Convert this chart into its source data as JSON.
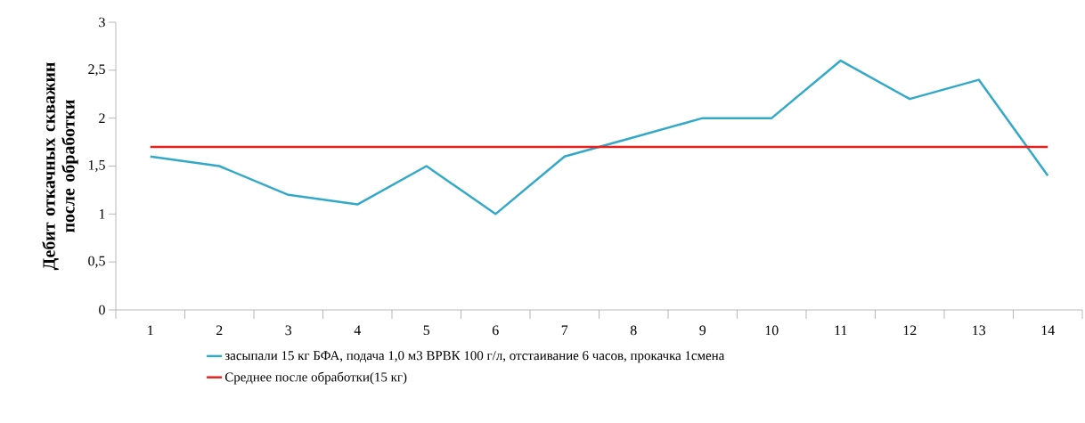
{
  "chart_data": {
    "type": "line",
    "ylabel": "Дебит откачных скважин после обработки",
    "categories": [
      "1",
      "2",
      "3",
      "4",
      "5",
      "6",
      "7",
      "8",
      "9",
      "10",
      "11",
      "12",
      "13",
      "14"
    ],
    "series": [
      {
        "name": "засыпали 15 кг БФА, подача 1,0 м3 ВРВК 100 г/л, отстаивание 6 часов, прокачка 1смена",
        "color": "#33a9c9",
        "values": [
          1.6,
          1.5,
          1.2,
          1.1,
          1.5,
          1.0,
          1.6,
          1.8,
          2.0,
          2.0,
          2.6,
          2.2,
          2.4,
          1.4
        ]
      },
      {
        "name": "Среднее после обработки(15 кг)",
        "color": "#e8201c",
        "values": [
          1.7,
          1.7,
          1.7,
          1.7,
          1.7,
          1.7,
          1.7,
          1.7,
          1.7,
          1.7,
          1.7,
          1.7,
          1.7,
          1.7
        ]
      }
    ],
    "ylim": [
      0,
      3
    ],
    "yticks": [
      0,
      {
        "value": 0.5,
        "label": "0,5"
      },
      1,
      {
        "value": 1.5,
        "label": "1,5"
      },
      2,
      {
        "value": 2.5,
        "label": "2,5"
      },
      3
    ],
    "grid": false,
    "legend": "bottom",
    "marker": "none",
    "line_style": "solid"
  }
}
